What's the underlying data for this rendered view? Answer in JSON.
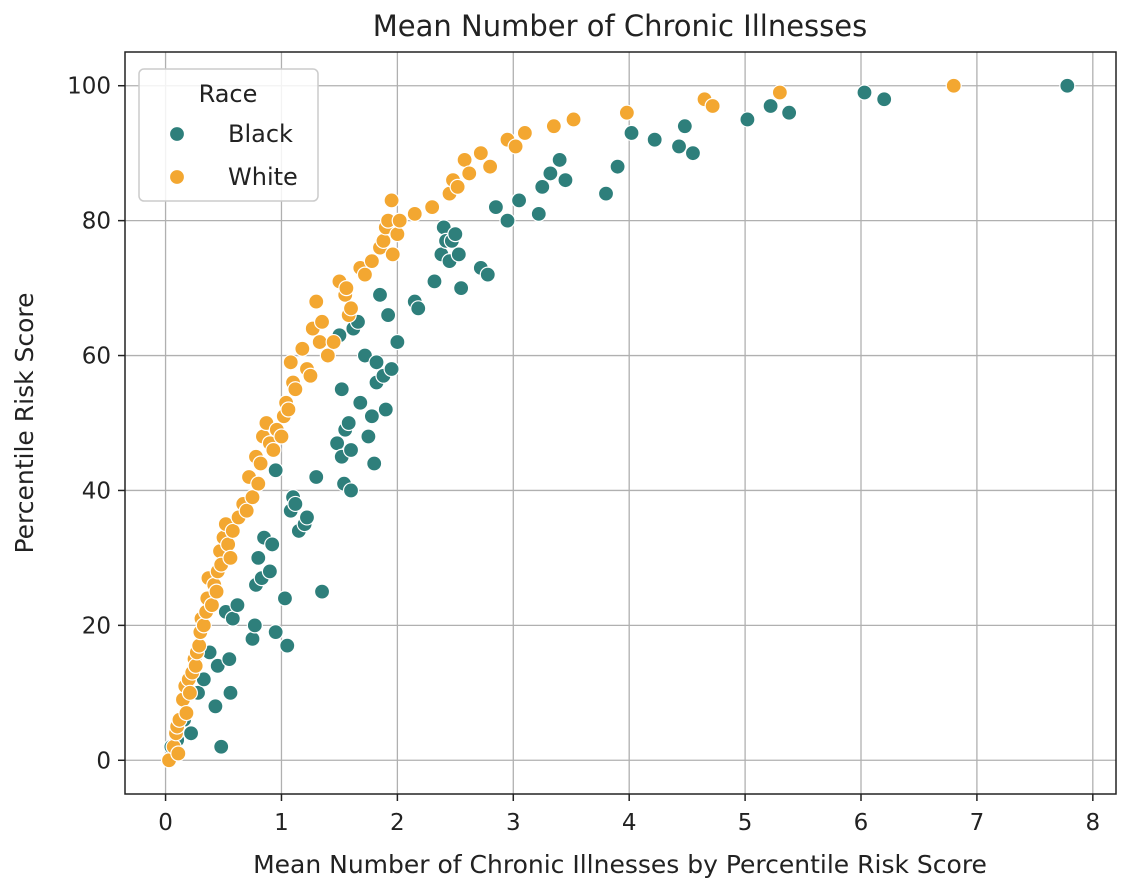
{
  "chart_data": {
    "type": "scatter",
    "title": "Mean Number of Chronic Illnesses",
    "xlabel": "Mean Number of Chronic Illnesses by Percentile Risk Score",
    "ylabel": "Percentile Risk Score",
    "xlim": [
      -0.35,
      8.2
    ],
    "ylim": [
      -5,
      105
    ],
    "xticks": [
      0,
      1,
      2,
      3,
      4,
      5,
      6,
      7,
      8
    ],
    "yticks": [
      0,
      20,
      40,
      60,
      80,
      100
    ],
    "grid": true,
    "legend": {
      "title": "Race",
      "placement": "top-left"
    },
    "series": [
      {
        "name": "Black",
        "color": "#2e7f7b",
        "points": [
          [
            0.05,
            2
          ],
          [
            0.1,
            3
          ],
          [
            0.16,
            6
          ],
          [
            0.22,
            4
          ],
          [
            0.28,
            10
          ],
          [
            0.33,
            12
          ],
          [
            0.38,
            16
          ],
          [
            0.43,
            8
          ],
          [
            0.45,
            14
          ],
          [
            0.48,
            2
          ],
          [
            0.52,
            22
          ],
          [
            0.55,
            15
          ],
          [
            0.56,
            10
          ],
          [
            0.58,
            21
          ],
          [
            0.62,
            23
          ],
          [
            0.75,
            18
          ],
          [
            0.77,
            20
          ],
          [
            0.78,
            26
          ],
          [
            0.8,
            30
          ],
          [
            0.83,
            27
          ],
          [
            0.85,
            33
          ],
          [
            0.9,
            28
          ],
          [
            0.92,
            32
          ],
          [
            0.95,
            19
          ],
          [
            0.95,
            43
          ],
          [
            1.03,
            24
          ],
          [
            1.05,
            17
          ],
          [
            1.08,
            37
          ],
          [
            1.1,
            39
          ],
          [
            1.12,
            38
          ],
          [
            1.15,
            34
          ],
          [
            1.2,
            35
          ],
          [
            1.22,
            36
          ],
          [
            1.3,
            42
          ],
          [
            1.35,
            25
          ],
          [
            1.48,
            47
          ],
          [
            1.5,
            63
          ],
          [
            1.52,
            55
          ],
          [
            1.52,
            45
          ],
          [
            1.54,
            41
          ],
          [
            1.55,
            49
          ],
          [
            1.58,
            50
          ],
          [
            1.6,
            40
          ],
          [
            1.6,
            46
          ],
          [
            1.62,
            64
          ],
          [
            1.66,
            65
          ],
          [
            1.68,
            53
          ],
          [
            1.72,
            60
          ],
          [
            1.75,
            48
          ],
          [
            1.78,
            51
          ],
          [
            1.8,
            44
          ],
          [
            1.82,
            59
          ],
          [
            1.82,
            56
          ],
          [
            1.85,
            69
          ],
          [
            1.88,
            57
          ],
          [
            1.9,
            52
          ],
          [
            1.92,
            66
          ],
          [
            1.95,
            58
          ],
          [
            2.0,
            62
          ],
          [
            2.15,
            68
          ],
          [
            2.18,
            67
          ],
          [
            2.32,
            71
          ],
          [
            2.38,
            75
          ],
          [
            2.4,
            79
          ],
          [
            2.42,
            77
          ],
          [
            2.45,
            74
          ],
          [
            2.47,
            77
          ],
          [
            2.5,
            78
          ],
          [
            2.53,
            75
          ],
          [
            2.55,
            70
          ],
          [
            2.72,
            73
          ],
          [
            2.78,
            72
          ],
          [
            2.85,
            82
          ],
          [
            2.95,
            80
          ],
          [
            3.05,
            83
          ],
          [
            3.22,
            81
          ],
          [
            3.25,
            85
          ],
          [
            3.32,
            87
          ],
          [
            3.4,
            89
          ],
          [
            3.45,
            86
          ],
          [
            3.8,
            84
          ],
          [
            3.9,
            88
          ],
          [
            4.02,
            93
          ],
          [
            4.22,
            92
          ],
          [
            4.43,
            91
          ],
          [
            4.48,
            94
          ],
          [
            4.55,
            90
          ],
          [
            5.02,
            95
          ],
          [
            5.22,
            97
          ],
          [
            5.38,
            96
          ],
          [
            6.03,
            99
          ],
          [
            6.2,
            98
          ],
          [
            7.78,
            100
          ]
        ]
      },
      {
        "name": "White",
        "color": "#f3a731",
        "points": [
          [
            0.03,
            0
          ],
          [
            0.07,
            2
          ],
          [
            0.09,
            4
          ],
          [
            0.1,
            5
          ],
          [
            0.11,
            1
          ],
          [
            0.12,
            6
          ],
          [
            0.15,
            9
          ],
          [
            0.17,
            11
          ],
          [
            0.18,
            7
          ],
          [
            0.2,
            12
          ],
          [
            0.21,
            10
          ],
          [
            0.23,
            13
          ],
          [
            0.25,
            15
          ],
          [
            0.26,
            14
          ],
          [
            0.27,
            16
          ],
          [
            0.29,
            17
          ],
          [
            0.3,
            19
          ],
          [
            0.31,
            21
          ],
          [
            0.33,
            20
          ],
          [
            0.35,
            22
          ],
          [
            0.36,
            24
          ],
          [
            0.37,
            27
          ],
          [
            0.4,
            23
          ],
          [
            0.42,
            26
          ],
          [
            0.44,
            25
          ],
          [
            0.45,
            28
          ],
          [
            0.47,
            31
          ],
          [
            0.48,
            29
          ],
          [
            0.5,
            33
          ],
          [
            0.52,
            35
          ],
          [
            0.54,
            32
          ],
          [
            0.56,
            30
          ],
          [
            0.58,
            34
          ],
          [
            0.63,
            36
          ],
          [
            0.67,
            38
          ],
          [
            0.7,
            37
          ],
          [
            0.72,
            42
          ],
          [
            0.75,
            39
          ],
          [
            0.78,
            45
          ],
          [
            0.8,
            41
          ],
          [
            0.82,
            44
          ],
          [
            0.84,
            48
          ],
          [
            0.87,
            50
          ],
          [
            0.9,
            47
          ],
          [
            0.93,
            46
          ],
          [
            0.96,
            49
          ],
          [
            1.0,
            48
          ],
          [
            1.02,
            51
          ],
          [
            1.04,
            53
          ],
          [
            1.06,
            52
          ],
          [
            1.08,
            59
          ],
          [
            1.1,
            56
          ],
          [
            1.12,
            55
          ],
          [
            1.18,
            61
          ],
          [
            1.22,
            58
          ],
          [
            1.25,
            57
          ],
          [
            1.27,
            64
          ],
          [
            1.3,
            68
          ],
          [
            1.33,
            62
          ],
          [
            1.35,
            65
          ],
          [
            1.4,
            60
          ],
          [
            1.45,
            62
          ],
          [
            1.5,
            71
          ],
          [
            1.55,
            69
          ],
          [
            1.56,
            70
          ],
          [
            1.58,
            66
          ],
          [
            1.6,
            67
          ],
          [
            1.68,
            73
          ],
          [
            1.72,
            72
          ],
          [
            1.78,
            74
          ],
          [
            1.85,
            76
          ],
          [
            1.88,
            77
          ],
          [
            1.9,
            79
          ],
          [
            1.92,
            80
          ],
          [
            1.95,
            83
          ],
          [
            1.96,
            75
          ],
          [
            2.0,
            78
          ],
          [
            2.02,
            80
          ],
          [
            2.15,
            81
          ],
          [
            2.3,
            82
          ],
          [
            2.45,
            84
          ],
          [
            2.48,
            86
          ],
          [
            2.52,
            85
          ],
          [
            2.58,
            89
          ],
          [
            2.62,
            87
          ],
          [
            2.72,
            90
          ],
          [
            2.8,
            88
          ],
          [
            2.95,
            92
          ],
          [
            3.02,
            91
          ],
          [
            3.1,
            93
          ],
          [
            3.35,
            94
          ],
          [
            3.52,
            95
          ],
          [
            3.98,
            96
          ],
          [
            4.65,
            98
          ],
          [
            4.72,
            97
          ],
          [
            5.3,
            99
          ],
          [
            6.8,
            100
          ]
        ]
      }
    ]
  }
}
